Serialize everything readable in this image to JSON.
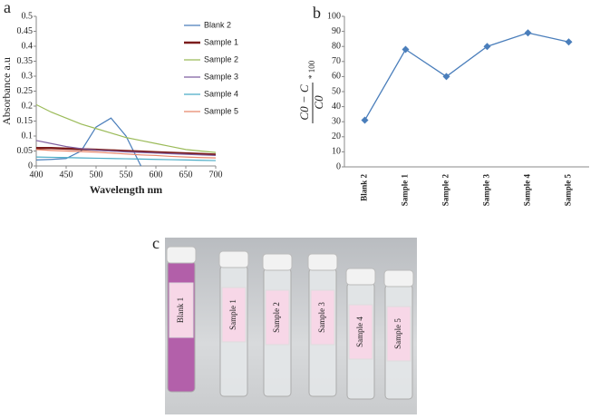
{
  "chart_data": [
    {
      "type": "line",
      "title": "a",
      "xlabel": "Wavelength nm",
      "ylabel": "Absorbance a.u",
      "x": [
        400,
        425,
        450,
        475,
        500,
        525,
        550,
        575,
        600,
        625,
        650,
        675,
        700
      ],
      "xlim": [
        400,
        700
      ],
      "xticks": [
        400,
        450,
        500,
        550,
        600,
        650,
        700
      ],
      "ylim": [
        0,
        0.5
      ],
      "yticks": [
        0,
        0.05,
        0.1,
        0.15,
        0.2,
        0.25,
        0.3,
        0.35,
        0.4,
        0.45,
        0.5
      ],
      "series": [
        {
          "name": "Blank 2",
          "color": "#4a7ebb",
          "values": [
            0.02,
            0.022,
            0.025,
            0.05,
            0.13,
            0.16,
            0.1,
            0.0,
            null,
            null,
            null,
            null,
            null
          ]
        },
        {
          "name": "Sample 1",
          "color": "#7b1c1c",
          "values": [
            0.06,
            0.06,
            0.058,
            0.056,
            0.054,
            0.052,
            0.05,
            0.048,
            0.046,
            0.044,
            0.042,
            0.04,
            0.038
          ]
        },
        {
          "name": "Sample 2",
          "color": "#9bbb59",
          "values": [
            0.205,
            0.18,
            0.16,
            0.14,
            0.125,
            0.11,
            0.095,
            0.085,
            0.075,
            0.065,
            0.055,
            0.05,
            0.045
          ]
        },
        {
          "name": "Sample 3",
          "color": "#7f5fa0",
          "values": [
            0.085,
            0.075,
            0.065,
            0.058,
            0.053,
            0.05,
            0.047,
            0.045,
            0.043,
            0.041,
            0.039,
            0.037,
            0.035
          ]
        },
        {
          "name": "Sample 4",
          "color": "#4bacc6",
          "values": [
            0.03,
            0.029,
            0.028,
            0.027,
            0.026,
            0.025,
            0.024,
            0.023,
            0.022,
            0.021,
            0.02,
            0.019,
            0.018
          ]
        },
        {
          "name": "Sample 5",
          "color": "#e8866a",
          "values": [
            0.055,
            0.052,
            0.05,
            0.048,
            0.046,
            0.043,
            0.04,
            0.037,
            0.035,
            0.032,
            0.03,
            0.028,
            0.027
          ]
        }
      ]
    },
    {
      "type": "line",
      "title": "b",
      "ylabel_numerator": "C0 − C",
      "ylabel_denominator": "C0",
      "ylabel_factor": "* 100",
      "categories": [
        "Blank 2",
        "Sample 1",
        "Sample 2",
        "Sample 3",
        "Sample 4",
        "Sample 5"
      ],
      "color": "#4a7ebb",
      "values": [
        31,
        78,
        60,
        80,
        89,
        83
      ],
      "ylim": [
        0,
        100
      ],
      "yticks": [
        0,
        10,
        20,
        30,
        40,
        50,
        60,
        70,
        80,
        90,
        100
      ]
    }
  ],
  "photo": {
    "label": "c",
    "tubes": [
      "Blank  1",
      "Sample 1",
      "Sample 2",
      "Sample 3",
      "Sample 4",
      "Sample 5"
    ]
  }
}
